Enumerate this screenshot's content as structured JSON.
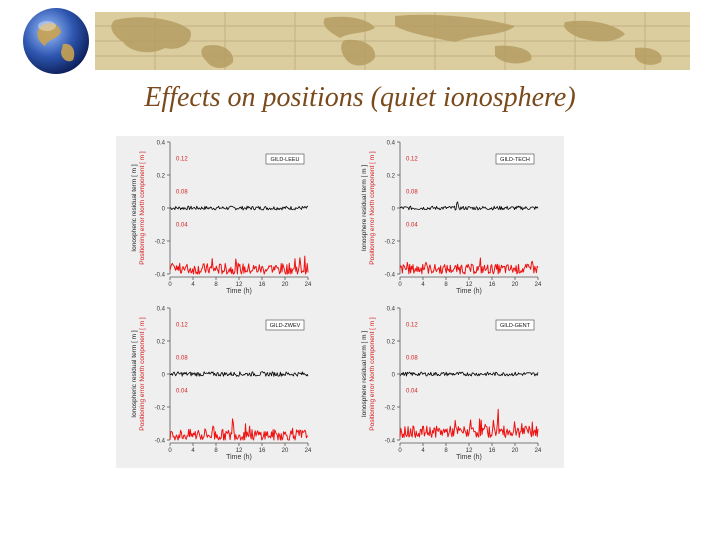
{
  "slide": {
    "title": "Effects on positions (quiet ionosphere)",
    "theme_colors": {
      "banner": "#d6c69a",
      "title_text": "#7a4a1c",
      "globe": "#2a4a96"
    },
    "decoration_icons": [
      "world-map-banner",
      "globe-icon"
    ]
  },
  "chart_data": [
    {
      "type": "line",
      "station_label": "GILD-LEEU",
      "ylabel_left": "Ionospheric residual term [ m ]",
      "ylabel_right": "Positioning error North component [ m ]",
      "xlabel": "Time (h)",
      "x_ticks": [
        "0",
        "4",
        "8",
        "12",
        "16",
        "20",
        "24"
      ],
      "y_ticks_left": [
        "0.4",
        "0.2",
        "0",
        "-0.2",
        "-0.4"
      ],
      "y_ticks_right": [
        "0.12",
        "0.08",
        "0.04"
      ],
      "xlim": [
        0,
        24
      ],
      "ylim": [
        -0.4,
        0.4
      ],
      "series": [
        {
          "color": "#000000",
          "baseline": 0.0,
          "amplitude": 0.012,
          "spike_at_hour": null
        },
        {
          "color": "#ee1111",
          "baseline": -0.37,
          "amplitude": 0.035,
          "spike_at_hour": null
        }
      ]
    },
    {
      "type": "line",
      "station_label": "GILD-TECH",
      "ylabel_left": "Ionosphere residual term [ m ]",
      "ylabel_right": "Positioning error North component [ m ]",
      "xlabel": "Time (h)",
      "x_ticks": [
        "0",
        "4",
        "8",
        "12",
        "16",
        "20",
        "24"
      ],
      "y_ticks_left": [
        "0.4",
        "0.2",
        "0",
        "-0.2",
        "-0.4"
      ],
      "y_ticks_right": [
        "0.12",
        "0.08",
        "0.04"
      ],
      "xlim": [
        0,
        24
      ],
      "ylim": [
        -0.4,
        0.4
      ],
      "series": [
        {
          "color": "#000000",
          "baseline": 0.0,
          "amplitude": 0.012,
          "spike_at_hour": 10
        },
        {
          "color": "#ee1111",
          "baseline": -0.37,
          "amplitude": 0.03,
          "spike_at_hour": 23
        }
      ]
    },
    {
      "type": "line",
      "station_label": "GILD-ZWEV",
      "ylabel_left": "Ionospheric residual term [ m ]",
      "ylabel_right": "Positioning error North component [ m ]",
      "xlabel": "Time (h)",
      "x_ticks": [
        "0",
        "4",
        "8",
        "12",
        "16",
        "20",
        "24"
      ],
      "y_ticks_left": [
        "0.4",
        "0.2",
        "0",
        "-0.2",
        "-0.4"
      ],
      "y_ticks_right": [
        "0.12",
        "0.08",
        "0.04"
      ],
      "xlim": [
        0,
        24
      ],
      "ylim": [
        -0.4,
        0.4
      ],
      "series": [
        {
          "color": "#000000",
          "baseline": 0.0,
          "amplitude": 0.014,
          "spike_at_hour": null
        },
        {
          "color": "#ee1111",
          "baseline": -0.37,
          "amplitude": 0.035,
          "spike_at_hour": 11
        }
      ]
    },
    {
      "type": "line",
      "station_label": "GILD-GENT",
      "ylabel_left": "Ionosphere residual term [ m ]",
      "ylabel_right": "Positioning error North component [ m ]",
      "xlabel": "Time (h)",
      "x_ticks": [
        "0",
        "4",
        "8",
        "12",
        "16",
        "20",
        "24"
      ],
      "y_ticks_left": [
        "0.4",
        "0.2",
        "0",
        "-0.2",
        "-0.4"
      ],
      "y_ticks_right": [
        "0.12",
        "0.08",
        "0.04"
      ],
      "xlim": [
        0,
        24
      ],
      "ylim": [
        -0.4,
        0.4
      ],
      "series": [
        {
          "color": "#000000",
          "baseline": 0.0,
          "amplitude": 0.012,
          "spike_at_hour": null
        },
        {
          "color": "#ee1111",
          "baseline": -0.35,
          "amplitude": 0.035,
          "spike_at_hour": 17
        }
      ]
    }
  ]
}
